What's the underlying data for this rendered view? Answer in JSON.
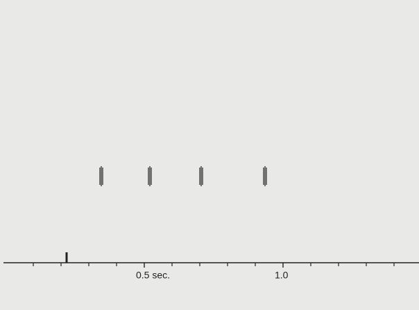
{
  "chart_data": {
    "type": "event",
    "x": [
      0.345,
      0.52,
      0.705,
      0.935
    ],
    "stimulus": 0.22,
    "color": "#222222",
    "xlim": [
      0,
      1.49
    ],
    "xticks": [
      {
        "value": 0.5,
        "label": "0.5 sec."
      },
      {
        "value": 1,
        "label": "1.0"
      }
    ],
    "xminorticks": [
      0.1,
      0.2,
      0.3,
      0.4,
      0.6,
      0.7,
      0.8,
      0.9,
      1.1,
      1.2,
      1.3,
      1.4
    ]
  }
}
